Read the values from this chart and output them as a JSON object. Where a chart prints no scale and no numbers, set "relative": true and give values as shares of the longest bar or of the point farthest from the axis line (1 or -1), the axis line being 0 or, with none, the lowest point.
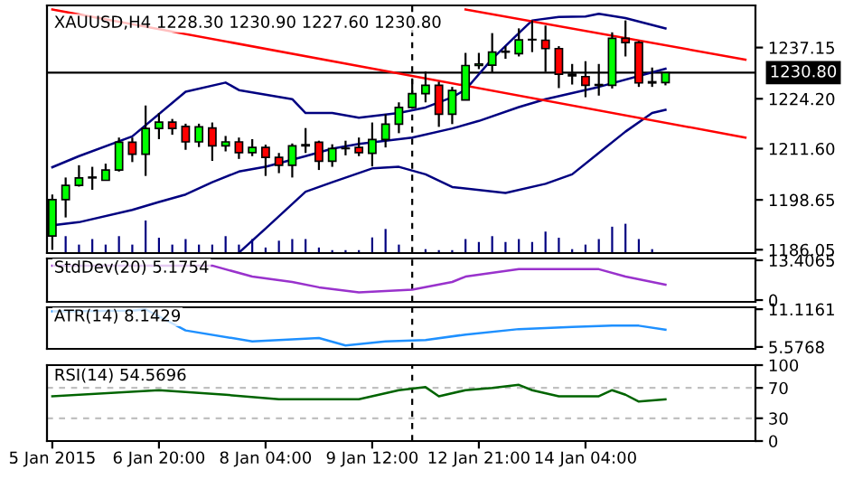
{
  "chart_data": [
    {
      "type": "candlestick",
      "title": "XAUUSD,H4 1228.30 1230.90 1227.60 1230.80",
      "ohlc": [
        [
          1189.5,
          1200.0,
          1186.0,
          1198.7
        ],
        [
          1198.7,
          1204.3,
          1194.2,
          1202.3
        ],
        [
          1202.3,
          1207.4,
          1202.0,
          1204.2
        ],
        [
          1204.2,
          1207.0,
          1201.2,
          1204.4
        ],
        [
          1203.6,
          1207.8,
          1203.5,
          1206.2
        ],
        [
          1206.2,
          1214.4,
          1205.8,
          1213.2
        ],
        [
          1213.2,
          1214.4,
          1208.2,
          1210.2
        ],
        [
          1210.2,
          1222.5,
          1204.7,
          1216.7
        ],
        [
          1216.7,
          1220.6,
          1214.0,
          1218.3
        ],
        [
          1218.3,
          1219.1,
          1215.1,
          1216.7
        ],
        [
          1217.2,
          1217.9,
          1211.3,
          1213.3
        ],
        [
          1213.3,
          1217.9,
          1212.0,
          1217.1
        ],
        [
          1216.8,
          1218.2,
          1208.5,
          1212.3
        ],
        [
          1212.3,
          1214.8,
          1210.9,
          1213.3
        ],
        [
          1213.3,
          1214.4,
          1209.0,
          1210.6
        ],
        [
          1210.6,
          1214.0,
          1209.7,
          1211.9
        ],
        [
          1211.9,
          1212.6,
          1204.7,
          1209.4
        ],
        [
          1209.4,
          1210.5,
          1205.4,
          1207.4
        ],
        [
          1207.4,
          1212.9,
          1204.3,
          1212.3
        ],
        [
          1212.3,
          1216.8,
          1210.5,
          1212.6
        ],
        [
          1213.2,
          1213.6,
          1206.2,
          1208.4
        ],
        [
          1208.4,
          1212.7,
          1207.0,
          1211.6
        ],
        [
          1211.6,
          1213.6,
          1209.9,
          1211.7
        ],
        [
          1211.9,
          1214.4,
          1209.7,
          1210.6
        ],
        [
          1210.4,
          1218.2,
          1207.1,
          1213.9
        ],
        [
          1213.9,
          1220.3,
          1211.9,
          1217.8
        ],
        [
          1217.8,
          1223.3,
          1215.5,
          1222.0
        ],
        [
          1222.0,
          1229.1,
          1221.7,
          1225.5
        ],
        [
          1225.5,
          1231.1,
          1223.3,
          1227.6
        ],
        [
          1227.6,
          1228.5,
          1217.1,
          1220.3
        ],
        [
          1220.3,
          1227.2,
          1217.8,
          1226.3
        ],
        [
          1223.9,
          1235.8,
          1223.9,
          1232.6
        ],
        [
          1232.6,
          1235.8,
          1231.7,
          1233.0
        ],
        [
          1232.7,
          1240.8,
          1230.7,
          1236.0
        ],
        [
          1236.0,
          1237.5,
          1234.3,
          1236.2
        ],
        [
          1235.6,
          1242.0,
          1234.9,
          1239.1
        ],
        [
          1239.1,
          1244.0,
          1236.0,
          1239.2
        ],
        [
          1239.0,
          1242.7,
          1231.0,
          1236.9
        ],
        [
          1236.9,
          1237.5,
          1226.9,
          1230.4
        ],
        [
          1230.4,
          1233.0,
          1227.8,
          1230.0
        ],
        [
          1229.8,
          1233.7,
          1224.6,
          1227.6
        ],
        [
          1227.6,
          1233.0,
          1225.0,
          1227.8
        ],
        [
          1227.6,
          1241.0,
          1226.8,
          1239.5
        ],
        [
          1239.5,
          1244.0,
          1234.9,
          1238.4
        ],
        [
          1238.4,
          1238.8,
          1227.2,
          1228.2
        ],
        [
          1228.2,
          1232.1,
          1227.2,
          1228.5
        ],
        [
          1228.3,
          1230.9,
          1227.6,
          1230.8
        ],
        null,
        null,
        null,
        null,
        null,
        null
      ],
      "colors": [
        "#00ff00",
        "#00ff00",
        "#00ff00",
        "#00ff00",
        "#00ff00",
        "#00ff00",
        "#ff0000",
        "#00ff00",
        "#00ff00",
        "#ff0000",
        "#ff0000",
        "#00ff00",
        "#ff0000",
        "#00ff00",
        "#ff0000",
        "#00ff00",
        "#ff0000",
        "#ff0000",
        "#00ff00",
        "#00ff00",
        "#ff0000",
        "#00ff00",
        "#00ff00",
        "#ff0000",
        "#00ff00",
        "#00ff00",
        "#00ff00",
        "#00ff00",
        "#00ff00",
        "#ff0000",
        "#00ff00",
        "#00ff00",
        "#00ff00",
        "#00ff00",
        "#00ff00",
        "#00ff00",
        "#00ff00",
        "#ff0000",
        "#ff0000",
        "#ff0000",
        "#ff0000",
        "#00ff00",
        "#00ff00",
        "#ff0000",
        "#ff0000",
        "#00ff00",
        "#00ff00",
        null,
        null,
        null,
        null,
        null,
        null
      ],
      "series": [
        {
          "type": "line",
          "color": "#000080",
          "values": [
            1206.9,
            null,
            1209.7,
            null,
            null,
            null,
            1214.7,
            null,
            null,
            null,
            1226.0,
            null,
            null,
            1228.3,
            1226.4,
            null,
            null,
            null,
            1224.1,
            1220.6,
            null,
            1220.6,
            null,
            1219.4,
            null,
            null,
            1220.6,
            null,
            1222.0,
            null,
            1224.6,
            1226.5,
            null,
            1234.3,
            null,
            1240.8,
            1244.0,
            null,
            1244.9,
            null,
            1245.0,
            1245.7,
            null,
            1244.6,
            null,
            null,
            1242.0,
            null,
            null,
            null,
            null,
            null,
            null
          ]
        },
        {
          "type": "line",
          "color": "#000080",
          "values": [
            1192.2,
            null,
            1193.0,
            null,
            null,
            null,
            1196.1,
            null,
            1198.1,
            null,
            1200.0,
            null,
            1203.1,
            null,
            1205.8,
            null,
            1207.0,
            null,
            null,
            1209.7,
            null,
            1211.6,
            null,
            1212.8,
            null,
            null,
            null,
            1214.4,
            null,
            null,
            1216.7,
            null,
            1218.6,
            null,
            null,
            1222.1,
            null,
            1224.1,
            null,
            null,
            null,
            1227.2,
            null,
            null,
            null,
            null,
            1231.8,
            null,
            null,
            null,
            null,
            null,
            null
          ]
        },
        {
          "type": "line",
          "color": "#000080",
          "values": [
            null,
            null,
            null,
            null,
            null,
            null,
            null,
            null,
            null,
            null,
            null,
            null,
            null,
            null,
            1185.3,
            null,
            1191.4,
            null,
            null,
            1200.7,
            null,
            1203.1,
            null,
            null,
            1206.6,
            null,
            1207.0,
            null,
            1205.1,
            null,
            1201.9,
            null,
            null,
            null,
            1200.4,
            null,
            null,
            1202.7,
            null,
            1205.1,
            null,
            1210.5,
            null,
            1215.9,
            null,
            1220.6,
            1221.4,
            null,
            null,
            null,
            null,
            null,
            null
          ]
        },
        {
          "type": "line",
          "color": "#ff0000",
          "values": [
            1246.8,
            null,
            null,
            null,
            null,
            null,
            null,
            null,
            null,
            null,
            null,
            null,
            null,
            null,
            null,
            null,
            null,
            null,
            null,
            null,
            null,
            null,
            null,
            null,
            null,
            null,
            null,
            null,
            null,
            null,
            null,
            null,
            null,
            null,
            null,
            null,
            null,
            null,
            null,
            null,
            null,
            null,
            null,
            null,
            null,
            null,
            null,
            null,
            null,
            null,
            null,
            null,
            1214.4
          ]
        },
        {
          "type": "line",
          "color": "#ff0000",
          "values": [
            null,
            null,
            null,
            null,
            null,
            null,
            null,
            null,
            null,
            null,
            null,
            null,
            null,
            null,
            null,
            null,
            null,
            null,
            null,
            null,
            null,
            null,
            null,
            null,
            null,
            null,
            null,
            null,
            null,
            null,
            null,
            1246.8,
            null,
            null,
            null,
            null,
            null,
            null,
            null,
            null,
            null,
            null,
            null,
            null,
            null,
            null,
            null,
            null,
            null,
            null,
            null,
            null,
            1234.1
          ]
        }
      ],
      "ylim": [
        1185.2,
        1247.8
      ],
      "yticks": [
        1186.05,
        1198.65,
        {
          "value": 1211.6,
          "label": "1211.60"
        },
        {
          "value": 1224.2,
          "label": "1224.20"
        },
        1237.15
      ],
      "ref_lines": [
        {
          "axis": "y",
          "value": 1230.8,
          "label": "1230.80",
          "color": "#000000"
        }
      ],
      "tick_labels": "y"
    },
    {
      "type": "bar",
      "relative": true,
      "color": "#000080",
      "tick_labels": false,
      "values": [
        null,
        0.52,
        0.26,
        0.43,
        0.26,
        0.52,
        0.26,
        1,
        0.47,
        0.26,
        0.43,
        0.26,
        0.26,
        0.52,
        0.26,
        0.43,
        0.17,
        0.38,
        0.43,
        0.43,
        0.17,
        0.09,
        0.09,
        0.09,
        0.48,
        0.74,
        0.26,
        null,
        0.12,
        0.09,
        0.09,
        0.43,
        0.34,
        0.52,
        0.34,
        0.43,
        0.34,
        0.66,
        0.47,
        0.12,
        0.26,
        0.43,
        0.81,
        0.9,
        0.43,
        0.12,
        null,
        null,
        null,
        null,
        null,
        null,
        null
      ]
    },
    {
      "type": "line",
      "title": "StdDev(20) 5.1754",
      "series": [
        {
          "color": "#9932cc",
          "values": [
            11.6,
            null,
            null,
            null,
            null,
            null,
            null,
            null,
            null,
            null,
            null,
            null,
            11.6,
            null,
            null,
            7.9,
            null,
            null,
            6.1,
            null,
            4.3,
            null,
            null,
            2.6,
            null,
            null,
            null,
            3.5,
            null,
            null,
            6.1,
            7.9,
            null,
            null,
            null,
            10.4,
            null,
            null,
            10.4,
            null,
            null,
            10.4,
            null,
            7.9,
            null,
            null,
            5.2,
            null,
            null,
            null,
            null,
            null,
            null
          ]
        }
      ],
      "ylim": [
        -0.6,
        14.0
      ],
      "yticks": [
        0,
        13.4065
      ],
      "tick_labels": "y"
    },
    {
      "type": "line",
      "title": "ATR(14) 8.1429",
      "series": [
        {
          "color": "#1e90ff",
          "values": [
            10.8,
            null,
            null,
            null,
            null,
            null,
            10.9,
            11.1,
            null,
            null,
            8.0,
            null,
            null,
            null,
            null,
            6.4,
            null,
            null,
            null,
            null,
            6.9,
            null,
            5.8,
            null,
            null,
            6.4,
            null,
            null,
            6.6,
            null,
            null,
            7.4,
            null,
            null,
            null,
            8.2,
            null,
            null,
            null,
            8.5,
            null,
            null,
            8.7,
            null,
            8.7,
            null,
            8.1,
            null,
            null,
            null,
            null,
            null,
            null
          ]
        }
      ],
      "ylim": [
        5.3,
        11.4
      ],
      "yticks": [
        5.5768,
        11.1161
      ],
      "tick_labels": "y"
    },
    {
      "type": "line",
      "title": "RSI(14) 54.5696",
      "categories": [
        "5 Jan 2015",
        null,
        null,
        null,
        null,
        null,
        null,
        null,
        "6 Jan 20:00",
        null,
        null,
        null,
        null,
        null,
        null,
        null,
        "8 Jan 04:00",
        null,
        null,
        null,
        null,
        null,
        null,
        null,
        "9 Jan 12:00",
        null,
        null,
        null,
        null,
        null,
        null,
        null,
        "12 Jan 21:00",
        null,
        null,
        null,
        null,
        null,
        null,
        null,
        "14 Jan 04:00",
        null,
        null,
        null,
        null,
        null,
        null,
        null,
        null,
        null,
        null,
        null,
        null
      ],
      "series": [
        {
          "color": "#006400",
          "values": [
            59,
            null,
            null,
            null,
            null,
            null,
            null,
            null,
            67,
            null,
            null,
            null,
            null,
            61,
            null,
            null,
            null,
            55,
            null,
            null,
            null,
            null,
            null,
            55,
            null,
            null,
            67,
            null,
            71,
            59,
            null,
            67,
            null,
            70,
            null,
            74,
            67,
            null,
            59,
            null,
            null,
            59,
            67,
            61,
            52,
            null,
            55,
            null,
            null,
            null,
            null,
            null,
            null
          ]
        }
      ],
      "ylim": [
        0,
        100
      ],
      "yticks": [
        0,
        30,
        70,
        100
      ],
      "ref_lines": [
        {
          "axis": "y",
          "value": 70,
          "color": "#c0c0c0",
          "line_style": "dashed"
        },
        {
          "axis": "y",
          "value": 30,
          "color": "#c0c0c0",
          "line_style": "dashed"
        }
      ]
    }
  ]
}
